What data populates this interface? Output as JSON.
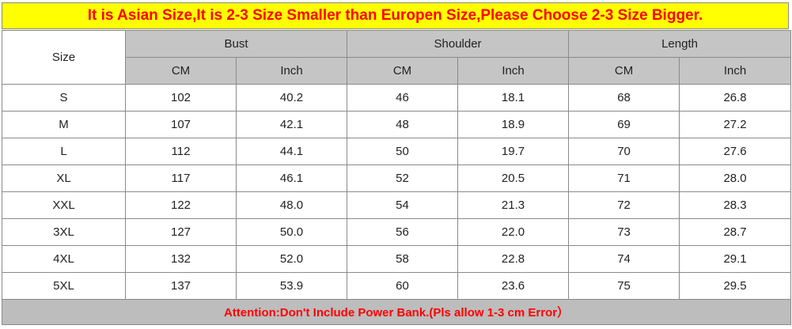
{
  "colors": {
    "banner_bg": "#ffff00",
    "alert_text": "#ff0000",
    "header_bg": "#c5c5c5",
    "footer_bg": "#bdbdbd"
  },
  "banner": "It is Asian Size,It is 2-3 Size Smaller than Europen Size,Please Choose 2-3 Size Bigger.",
  "table": {
    "size_header": "Size",
    "groups": [
      "Bust",
      "Shoulder",
      "Length"
    ],
    "units": [
      "CM",
      "Inch",
      "CM",
      "Inch",
      "CM",
      "Inch"
    ],
    "rows": [
      [
        "S",
        "102",
        "40.2",
        "46",
        "18.1",
        "68",
        "26.8"
      ],
      [
        "M",
        "107",
        "42.1",
        "48",
        "18.9",
        "69",
        "27.2"
      ],
      [
        "L",
        "112",
        "44.1",
        "50",
        "19.7",
        "70",
        "27.6"
      ],
      [
        "XL",
        "117",
        "46.1",
        "52",
        "20.5",
        "71",
        "28.0"
      ],
      [
        "XXL",
        "122",
        "48.0",
        "54",
        "21.3",
        "72",
        "28.3"
      ],
      [
        "3XL",
        "127",
        "50.0",
        "56",
        "22.0",
        "73",
        "28.7"
      ],
      [
        "4XL",
        "132",
        "52.0",
        "58",
        "22.8",
        "74",
        "29.1"
      ],
      [
        "5XL",
        "137",
        "53.9",
        "60",
        "23.6",
        "75",
        "29.5"
      ]
    ]
  },
  "footer": "Attention:Don't Include Power Bank.(Pls allow 1-3 cm Error）"
}
